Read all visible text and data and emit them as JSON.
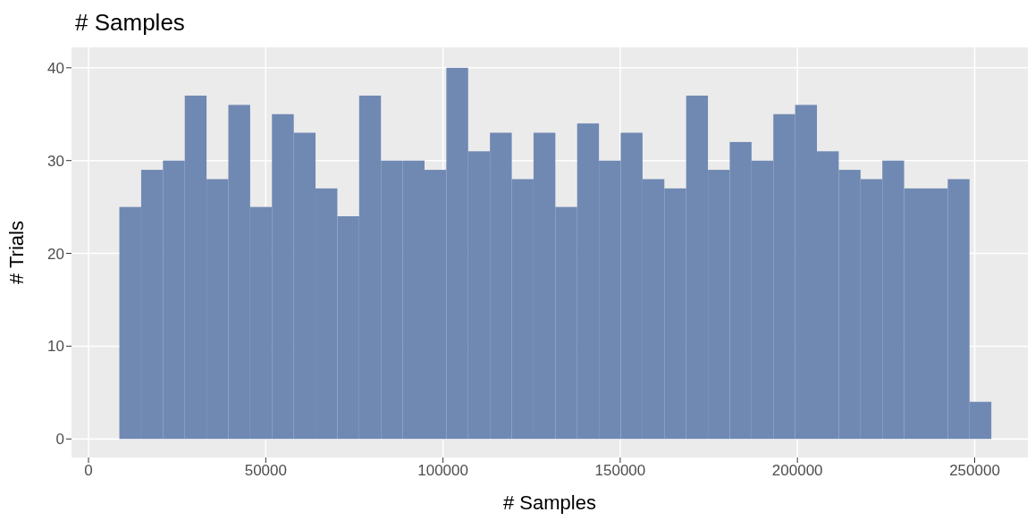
{
  "chart_data": {
    "type": "histogram",
    "title": "# Samples",
    "xlabel": "# Samples",
    "ylabel": "# Trials",
    "bins": [
      8700,
      14850,
      21000,
      27150,
      33300,
      39450,
      45600,
      51750,
      57900,
      64050,
      70200,
      76350,
      82500,
      88650,
      94800,
      100950,
      107100,
      113250,
      119400,
      125550,
      131700,
      137850,
      144000,
      150150,
      156300,
      162450,
      168600,
      174750,
      180900,
      187050,
      193200,
      199350,
      205500,
      211650,
      217800,
      223950,
      230100,
      236250,
      242400,
      248550,
      254700
    ],
    "values": [
      25,
      29,
      30,
      37,
      28,
      36,
      25,
      35,
      33,
      27,
      24,
      37,
      30,
      30,
      29,
      40,
      31,
      33,
      28,
      33,
      25,
      34,
      30,
      33,
      28,
      27,
      37,
      29,
      32,
      30,
      35,
      36,
      31,
      29,
      28,
      30,
      27,
      27,
      28,
      4
    ],
    "color": "#7089b3",
    "xlim": [
      -4800,
      265000
    ],
    "xticks": [
      0,
      50000,
      100000,
      150000,
      200000,
      250000
    ],
    "ylim": [
      -2,
      42.2
    ],
    "yticks": [
      0,
      10,
      20,
      30,
      40
    ],
    "grid": true
  }
}
